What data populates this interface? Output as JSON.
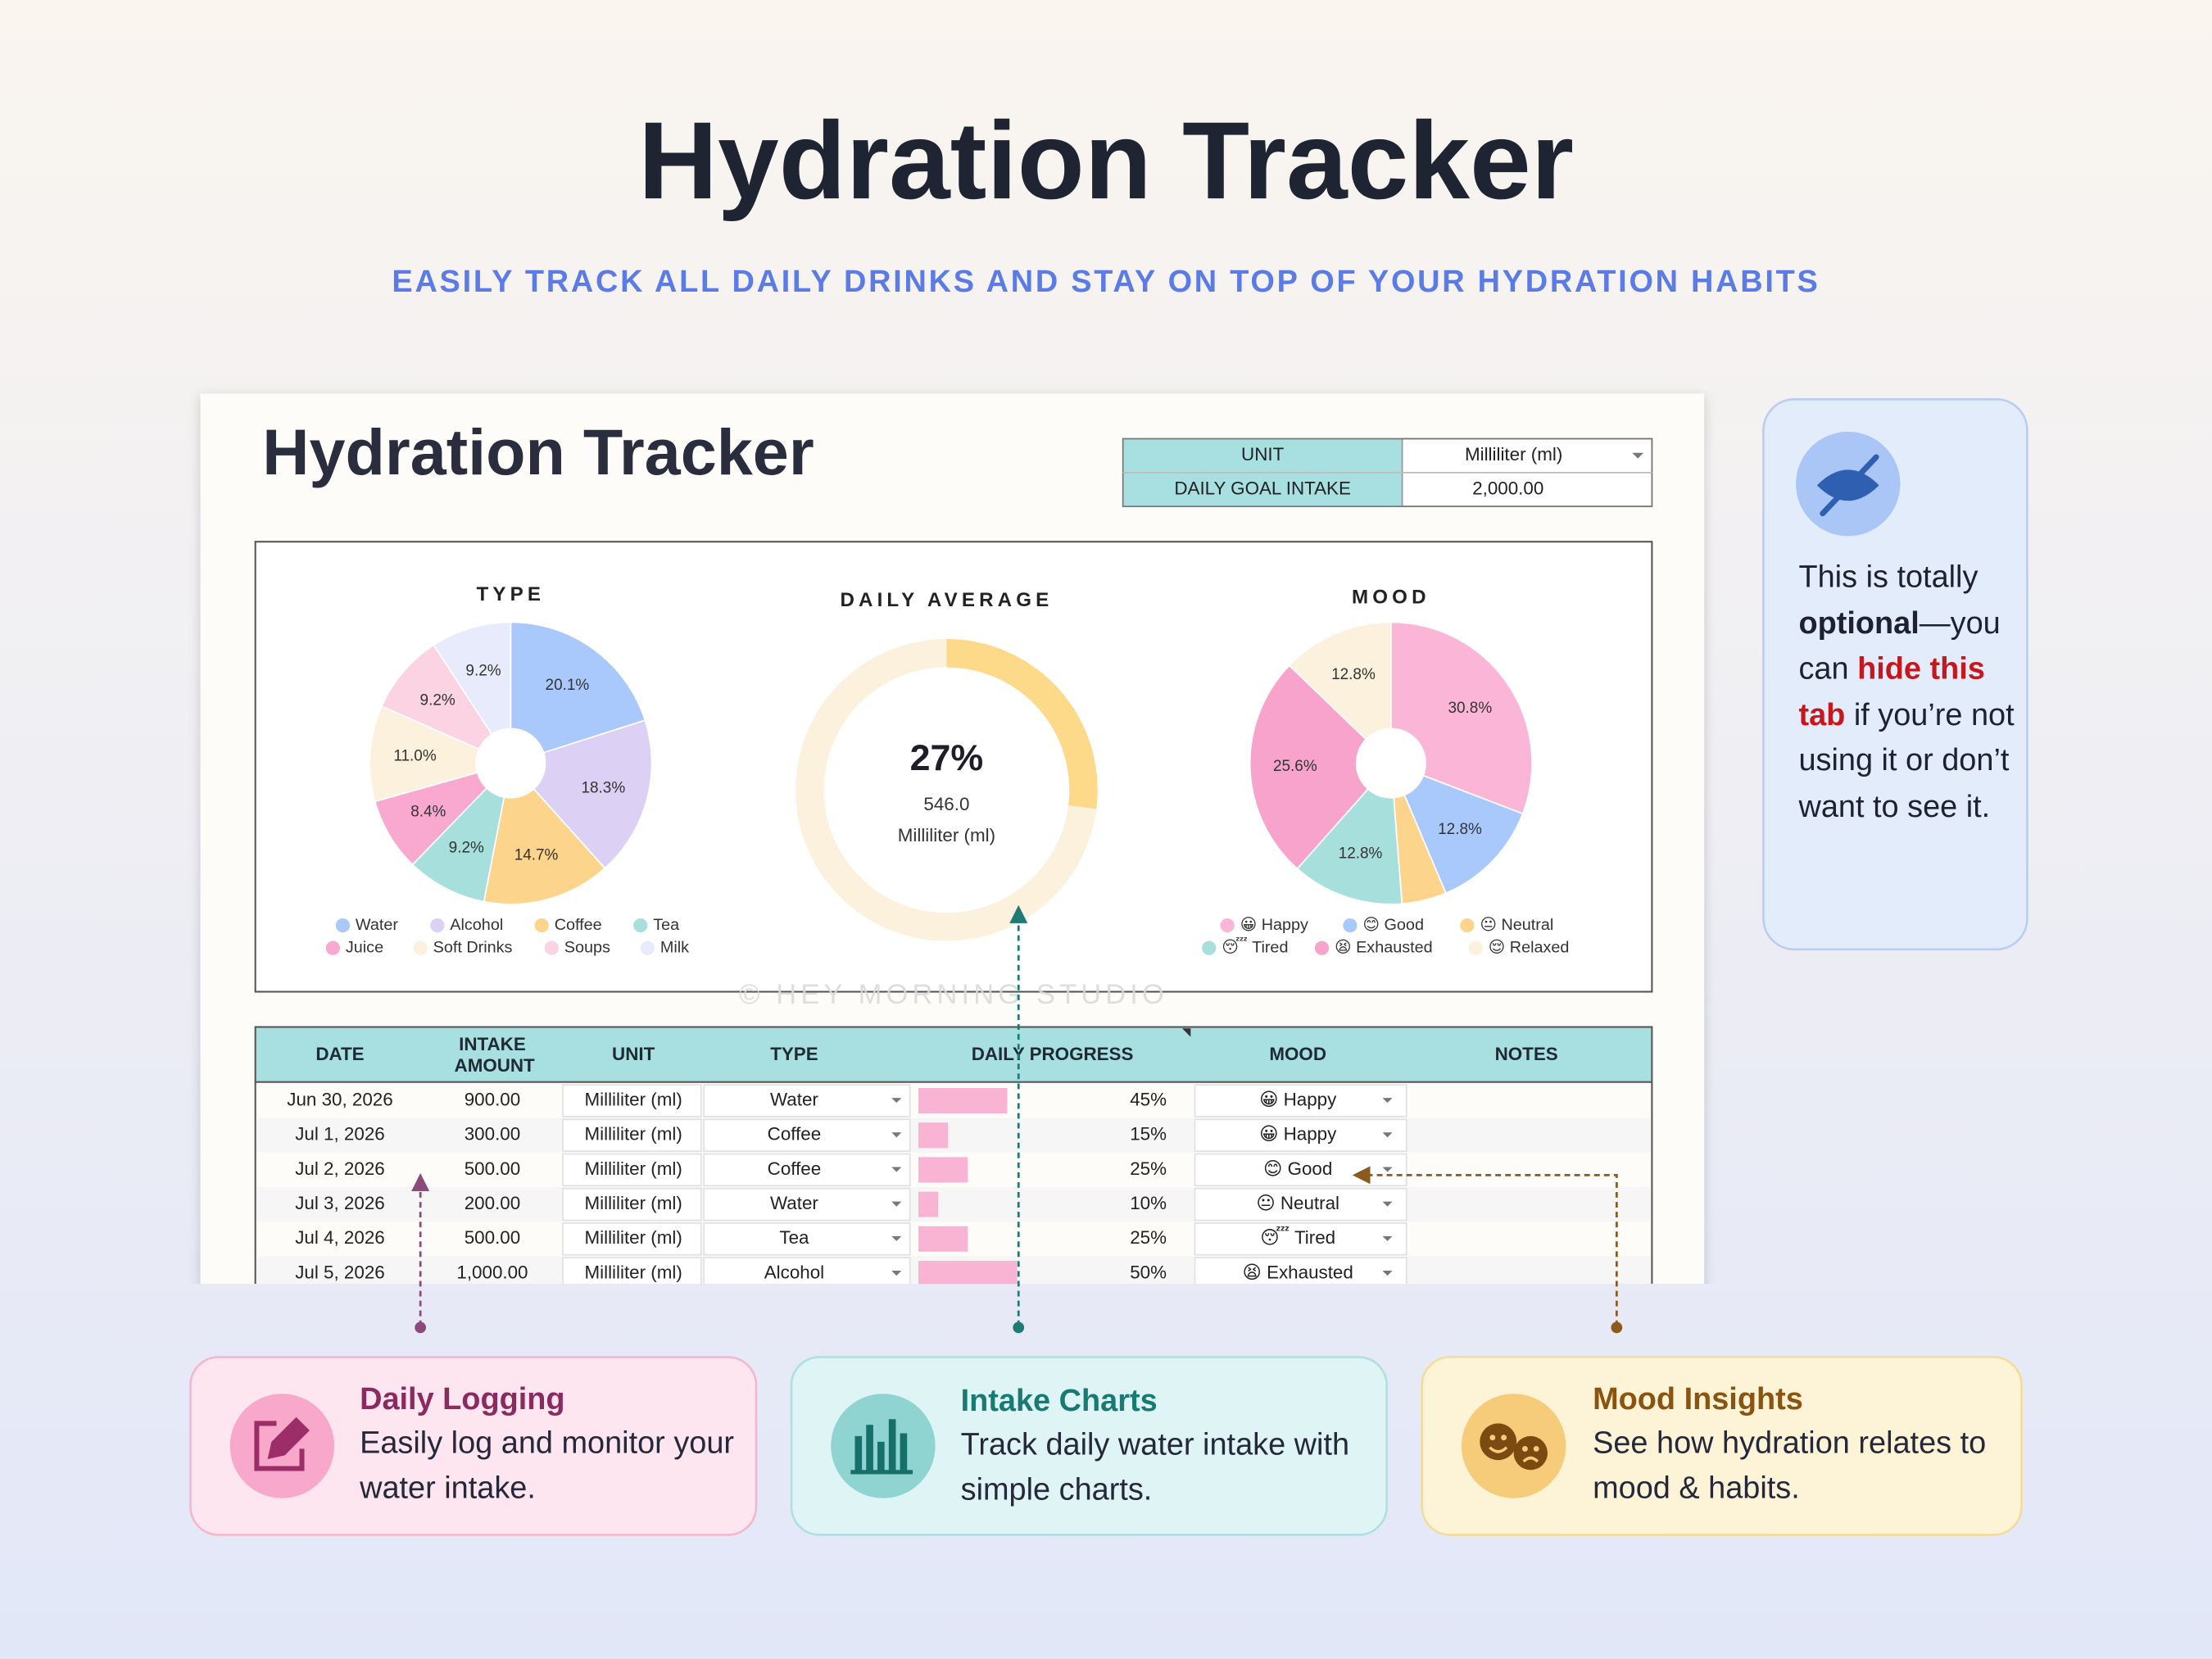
{
  "header": {
    "title": "Hydration Tracker",
    "subtitle": "EASILY TRACK ALL DAILY DRINKS AND STAY ON TOP OF YOUR HYDRATION HABITS"
  },
  "sheet": {
    "title": "Hydration Tracker",
    "settings": [
      [
        "UNIT",
        "Milliliter (ml)"
      ],
      [
        "DAILY GOAL INTAKE",
        "2,000.00"
      ]
    ],
    "watermark": "© HEY MORNING STUDIO",
    "table": {
      "columns": [
        "DATE",
        "INTAKE AMOUNT",
        "UNIT",
        "TYPE",
        "DAILY PROGRESS",
        "MOOD",
        "NOTES"
      ],
      "rows": [
        {
          "date": "Jun 30, 2026",
          "amount": "900.00",
          "unit": "Milliliter (ml)",
          "type": "Water",
          "progress": {
            "value": 45,
            "label": "45%"
          },
          "mood": "😀 Happy"
        },
        {
          "date": "Jul 1, 2026",
          "amount": "300.00",
          "unit": "Milliliter (ml)",
          "type": "Coffee",
          "progress": {
            "value": 15,
            "label": "15%"
          },
          "mood": "😀 Happy"
        },
        {
          "date": "Jul 2, 2026",
          "amount": "500.00",
          "unit": "Milliliter (ml)",
          "type": "Coffee",
          "progress": {
            "value": 25,
            "label": "25%"
          },
          "mood": "😊 Good"
        },
        {
          "date": "Jul 3, 2026",
          "amount": "200.00",
          "unit": "Milliliter (ml)",
          "type": "Water",
          "progress": {
            "value": 10,
            "label": "10%"
          },
          "mood": "😐 Neutral"
        },
        {
          "date": "Jul 4, 2026",
          "amount": "500.00",
          "unit": "Milliliter (ml)",
          "type": "Tea",
          "progress": {
            "value": 25,
            "label": "25%"
          },
          "mood": "😴 Tired"
        },
        {
          "date": "Jul 5, 2026",
          "amount": "1,000.00",
          "unit": "Milliliter (ml)",
          "type": "Alcohol",
          "progress": {
            "value": 50,
            "label": "50%"
          },
          "mood": "😫 Exhausted"
        }
      ]
    }
  },
  "chart_data": [
    {
      "type": "pie",
      "title": "TYPE",
      "categories": [
        "Water",
        "Alcohol",
        "Coffee",
        "Tea",
        "Juice",
        "Soft Drinks",
        "Soups",
        "Milk"
      ],
      "values": [
        20.1,
        18.3,
        14.7,
        9.2,
        8.4,
        11.0,
        9.2,
        9.2
      ],
      "value_labels": [
        "20.1%",
        "18.3%",
        "14.7%",
        "9.2%",
        "8.4%",
        "11.0%",
        "9.2%",
        "9.2%"
      ],
      "colors": [
        "#a9c8fb",
        "#dcd0f4",
        "#fdd48b",
        "#a6dfdc",
        "#f9a9cf",
        "#fbf1dc",
        "#fbd3e2",
        "#e8ebfb"
      ]
    },
    {
      "type": "donut",
      "title": "DAILY AVERAGE",
      "values": [
        27
      ],
      "value_labels": [
        "27%"
      ],
      "ylim": [
        0,
        100
      ],
      "center_text": [
        "546.0",
        "Milliliter (ml)"
      ],
      "color": "#fdd98a",
      "track_color": "#fcf1dc"
    },
    {
      "type": "pie",
      "title": "MOOD",
      "categories": [
        "😀 Happy",
        "😊 Good",
        "😐 Neutral",
        "😴 Tired",
        "😫 Exhausted",
        "😌 Relaxed"
      ],
      "values": [
        30.8,
        12.8,
        5.1,
        12.8,
        25.6,
        12.8
      ],
      "value_labels": [
        "30.8%",
        "12.8%",
        null,
        "12.8%",
        "25.6%",
        "12.8%"
      ],
      "colors": [
        "#fbb6d7",
        "#a9c8fb",
        "#fdd48b",
        "#a6dfdc",
        "#f8a3cb",
        "#fbf1dc"
      ]
    }
  ],
  "side_note": {
    "parts": [
      "This is totally ",
      "optional",
      "—you can ",
      "hide this tab",
      " if you’re not using it or don’t want to see it."
    ]
  },
  "features": [
    {
      "title": "Daily Logging",
      "text": "Easily log and monitor your water intake."
    },
    {
      "title": "Intake Charts",
      "text": "Track daily water intake with simple charts."
    },
    {
      "title": "Mood Insights",
      "text": "See how hydration relates to mood & habits."
    }
  ]
}
